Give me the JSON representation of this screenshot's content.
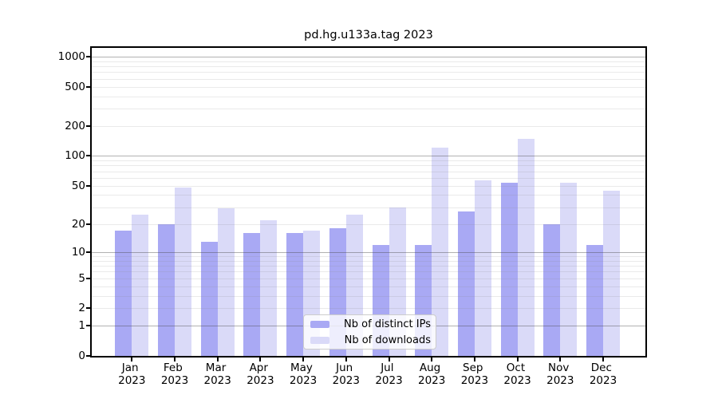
{
  "figure": {
    "background": "#ffffff"
  },
  "chart_data": {
    "type": "bar",
    "title": "pd.hg.u133a.tag 2023",
    "categories": [
      "Jan",
      "Feb",
      "Mar",
      "Apr",
      "May",
      "Jun",
      "Jul",
      "Aug",
      "Sep",
      "Oct",
      "Nov",
      "Dec"
    ],
    "category_year": "2023",
    "series": [
      {
        "name": "Nb of distinct IPs",
        "color": "#a9a9f4",
        "values": [
          17,
          20,
          13,
          16,
          16,
          18,
          12,
          12,
          27,
          53,
          20,
          12
        ]
      },
      {
        "name": "Nb of downloads",
        "color": "#dadaf8",
        "values": [
          25,
          48,
          29,
          22,
          17,
          25,
          30,
          122,
          57,
          150,
          54,
          44
        ]
      }
    ],
    "xlabel": "",
    "ylabel": "",
    "yscale": "log1p",
    "ylim": [
      0,
      1000
    ],
    "ytick_labels": [
      "0",
      "1",
      "2",
      "5",
      "10",
      "20",
      "50",
      "100",
      "200",
      "500",
      "1000"
    ],
    "ytick_values": [
      0,
      1,
      2,
      5,
      10,
      20,
      50,
      100,
      200,
      500,
      1000
    ],
    "major_gridlines": [
      1,
      10,
      100,
      1000
    ],
    "minor_gridlines": [
      2,
      3,
      4,
      5,
      6,
      7,
      8,
      9,
      20,
      30,
      40,
      50,
      60,
      70,
      80,
      90,
      200,
      300,
      400,
      500,
      600,
      700,
      800,
      900
    ],
    "grid": true,
    "legend_position": "lower-center"
  }
}
